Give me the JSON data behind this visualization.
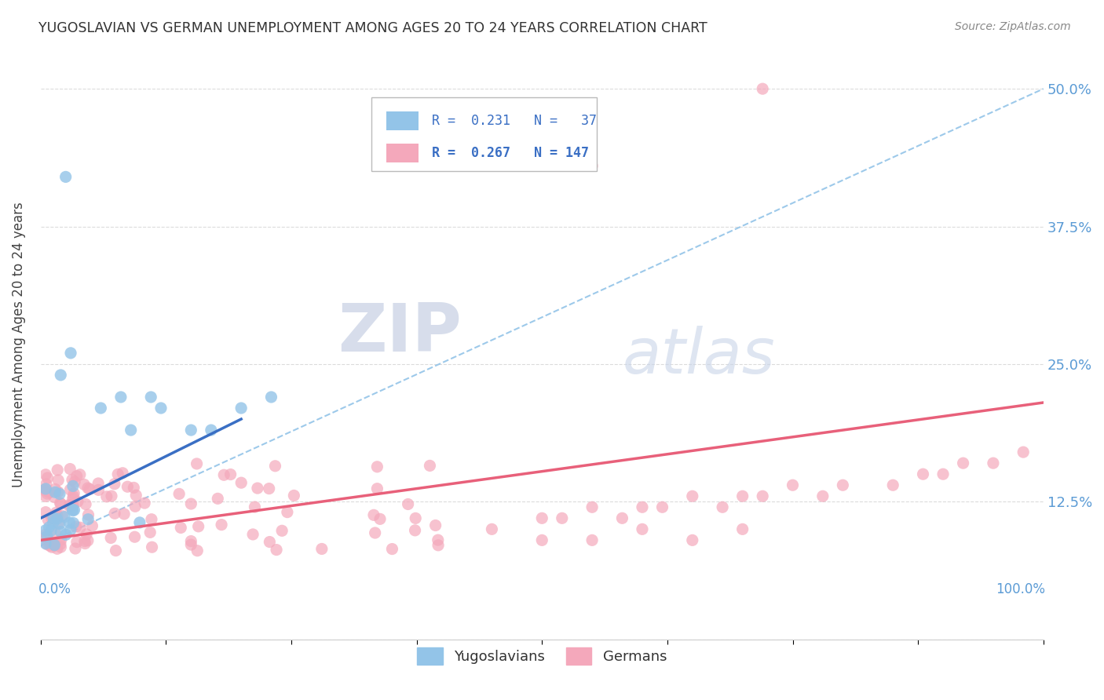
{
  "title": "YUGOSLAVIAN VS GERMAN UNEMPLOYMENT AMONG AGES 20 TO 24 YEARS CORRELATION CHART",
  "source": "Source: ZipAtlas.com",
  "ylabel": "Unemployment Among Ages 20 to 24 years",
  "ytick_labels": [
    "",
    "12.5%",
    "25.0%",
    "37.5%",
    "50.0%"
  ],
  "ytick_vals": [
    0.0,
    0.125,
    0.25,
    0.375,
    0.5
  ],
  "xlim": [
    0.0,
    1.0
  ],
  "ylim": [
    0.06,
    0.535
  ],
  "color_yug": "#93c4e8",
  "color_ger": "#f4a8bb",
  "color_yug_line": "#3a6fc4",
  "color_ger_line": "#e8607a",
  "color_dashed": "#93c4e8",
  "watermark_zip": "ZIP",
  "watermark_atlas": "atlas"
}
